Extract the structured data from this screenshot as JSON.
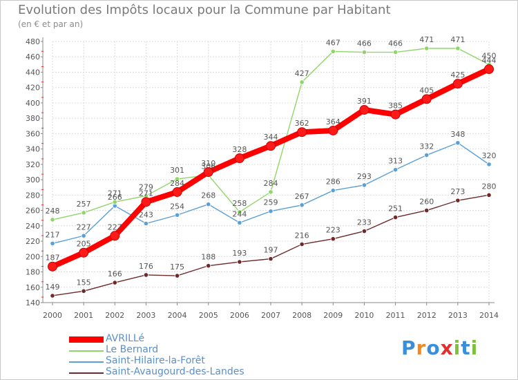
{
  "title": "Evolution des Impôts locaux pour la Commune par Habitant",
  "subtitle": "(en € et par an)",
  "brand": {
    "letters": [
      "P",
      "r",
      "o",
      "x",
      "i",
      "t",
      "i"
    ],
    "colors": [
      "#3a8fd8",
      "#f08a1c",
      "#3a8fd8",
      "#e03030",
      "#7cc23c",
      "#3a8fd8",
      "#7cc23c"
    ]
  },
  "chart_data": {
    "type": "line",
    "x": [
      "2000",
      "2001",
      "2002",
      "2003",
      "2004",
      "2005",
      "2006",
      "2007",
      "2008",
      "2009",
      "2010",
      "2011",
      "2012",
      "2013",
      "2014"
    ],
    "ylim": [
      140,
      480
    ],
    "yticks": [
      140,
      160,
      180,
      200,
      220,
      240,
      260,
      280,
      300,
      320,
      340,
      360,
      380,
      400,
      420,
      440,
      460,
      480
    ],
    "grid": true,
    "legend_position": "bottom-left",
    "series": [
      {
        "name": "Saint-Avaugourd-des-Landes",
        "color": "#6e2a2a",
        "values": [
          149,
          155,
          166,
          176,
          175,
          188,
          193,
          197,
          216,
          223,
          233,
          251,
          260,
          273,
          280
        ]
      },
      {
        "name": "Saint-Hilaire-la-Forêt",
        "color": "#5a9fd6",
        "values": [
          217,
          227,
          266,
          243,
          254,
          268,
          244,
          259,
          267,
          286,
          293,
          313,
          332,
          348,
          320
        ]
      },
      {
        "name": "Le Bernard",
        "color": "#8fd66a",
        "values": [
          248,
          257,
          271,
          279,
          301,
          306,
          258,
          284,
          427,
          467,
          466,
          466,
          471,
          471,
          450
        ]
      },
      {
        "name": "AVRILLé",
        "color": "#ff0000",
        "values": [
          187,
          205,
          227,
          271,
          284,
          310,
          328,
          344,
          362,
          364,
          391,
          385,
          405,
          425,
          444
        ]
      }
    ]
  }
}
